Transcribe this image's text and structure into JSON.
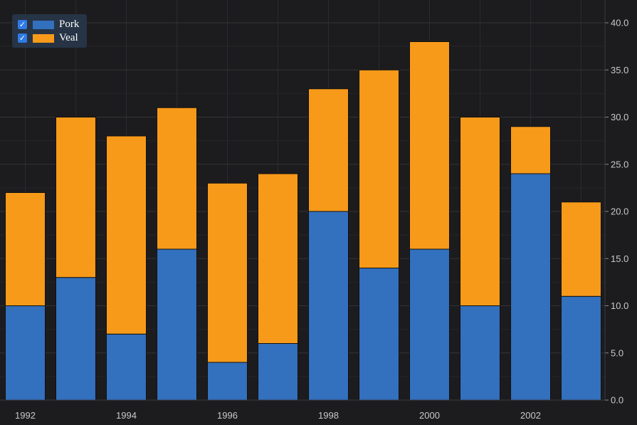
{
  "chart_data": {
    "type": "bar",
    "stacked": true,
    "categories": [
      "1992",
      "1993",
      "1994",
      "1995",
      "1996",
      "1997",
      "1998",
      "1999",
      "2000",
      "2001",
      "2002",
      "2003"
    ],
    "series": [
      {
        "name": "Pork",
        "color": "#3370bd",
        "values": [
          10,
          13,
          7,
          16,
          4,
          6,
          20,
          14,
          16,
          10,
          24,
          11
        ]
      },
      {
        "name": "Veal",
        "color": "#f79a1a",
        "values": [
          12,
          17,
          21,
          15,
          19,
          18,
          13,
          21,
          22,
          20,
          5,
          10
        ]
      }
    ],
    "xtick_labels": [
      "1992",
      "1994",
      "1996",
      "1998",
      "2000",
      "2002"
    ],
    "ytick_labels": [
      "0.0",
      "5.0",
      "10.0",
      "15.0",
      "20.0",
      "25.0",
      "30.0",
      "35.0",
      "40.0"
    ],
    "ylim": [
      0,
      42
    ],
    "yaxis_position": "right",
    "grid": true,
    "legend": {
      "position": "top-left",
      "checked_glyph": "✓"
    },
    "title": "",
    "xlabel": "",
    "ylabel": ""
  }
}
